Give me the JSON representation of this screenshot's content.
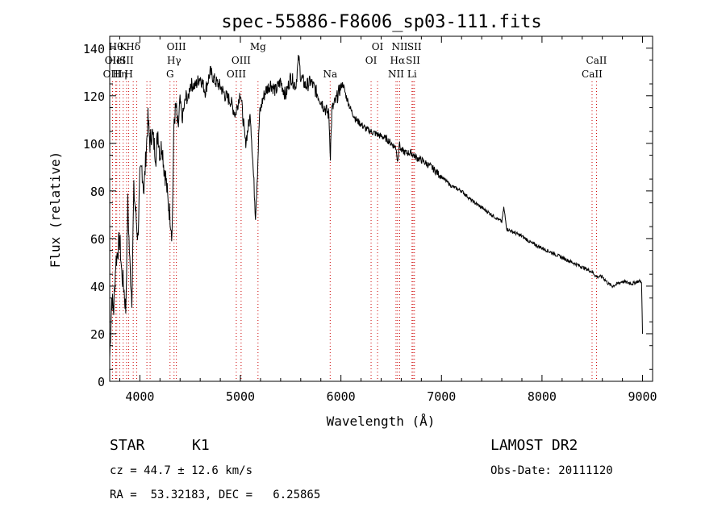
{
  "chart_data": {
    "type": "line",
    "title": "spec-55886-F8606_sp03-111.fits",
    "xlabel": "Wavelength (Å)",
    "ylabel": "Flux (relative)",
    "xlim": [
      3700,
      9100
    ],
    "ylim": [
      0,
      145
    ],
    "xticks": [
      4000,
      5000,
      6000,
      7000,
      8000,
      9000
    ],
    "yticks": [
      0,
      20,
      40,
      60,
      80,
      100,
      120,
      140
    ],
    "grid": false,
    "line_color": "#000000",
    "marker_line_color": "#cc0000",
    "series": [
      {
        "x": [
          3700,
          3720,
          3740,
          3760,
          3780,
          3800,
          3820,
          3840,
          3860,
          3880,
          3900,
          3920,
          3940,
          3960,
          3980,
          4000,
          4020,
          4040,
          4060,
          4080,
          4100,
          4120,
          4140,
          4160,
          4180,
          4200,
          4220,
          4240,
          4260,
          4280,
          4300,
          4320,
          4340,
          4360,
          4380,
          4400,
          4420,
          4440,
          4460,
          4480,
          4500,
          4550,
          4600,
          4650,
          4700,
          4750,
          4800,
          4850,
          4900,
          4950,
          5000,
          5050,
          5100,
          5150,
          5170,
          5190,
          5220,
          5250,
          5300,
          5350,
          5400,
          5450,
          5500,
          5550,
          5580,
          5600,
          5650,
          5700,
          5750,
          5800,
          5850,
          5880,
          5895,
          5910,
          5950,
          6000,
          6020,
          6050,
          6100,
          6150,
          6200,
          6250,
          6300,
          6350,
          6400,
          6450,
          6500,
          6550,
          6563,
          6580,
          6600,
          6650,
          6700,
          6750,
          6800,
          6900,
          7000,
          7100,
          7200,
          7300,
          7400,
          7500,
          7600,
          7620,
          7650,
          7700,
          7800,
          7900,
          8000,
          8100,
          8200,
          8300,
          8400,
          8500,
          8540,
          8600,
          8660,
          8700,
          8800,
          8900,
          8950,
          8990,
          9000
        ],
        "y": [
          10,
          35,
          30,
          50,
          55,
          60,
          45,
          40,
          30,
          75,
          50,
          35,
          80,
          70,
          60,
          85,
          90,
          80,
          95,
          110,
          100,
          105,
          100,
          95,
          105,
          95,
          100,
          90,
          85,
          75,
          70,
          62,
          110,
          115,
          105,
          118,
          110,
          115,
          120,
          118,
          125,
          124,
          128,
          122,
          130,
          126,
          124,
          120,
          118,
          112,
          122,
          100,
          112,
          70,
          88,
          112,
          118,
          122,
          125,
          122,
          126,
          120,
          128,
          124,
          136,
          128,
          124,
          126,
          122,
          118,
          114,
          112,
          95,
          114,
          118,
          124,
          125,
          120,
          114,
          110,
          108,
          106,
          105,
          104,
          103,
          102,
          100,
          98,
          92,
          100,
          97,
          96,
          96,
          94,
          93,
          90,
          86,
          82,
          80,
          76,
          73,
          70,
          67,
          73,
          64,
          63,
          61,
          58,
          56,
          54,
          52,
          50,
          48,
          46,
          44,
          44,
          41,
          40,
          42,
          41,
          42,
          42,
          20
        ]
      }
    ],
    "markers": [
      {
        "x": 3727,
        "label": "OII",
        "row": 1
      },
      {
        "x": 3729,
        "label": "OIII",
        "row": 2
      },
      {
        "x": 3760,
        "label": "Hθ",
        "row": 0
      },
      {
        "x": 3770,
        "label": "HeI",
        "row": 1
      },
      {
        "x": 3800,
        "label": "Hη",
        "row": 2
      },
      {
        "x": 3834,
        "label": "K",
        "row": 0
      },
      {
        "x": 3868,
        "label": "SII",
        "row": 1
      },
      {
        "x": 3889,
        "label": "H",
        "row": 2
      },
      {
        "x": 3934,
        "label": "Hδ",
        "row": 0
      },
      {
        "x": 3969,
        "label": "",
        "row": 0
      },
      {
        "x": 4070,
        "label": "",
        "row": 0
      },
      {
        "x": 4102,
        "label": "",
        "row": 0
      },
      {
        "x": 4300,
        "label": "G",
        "row": 2
      },
      {
        "x": 4340,
        "label": "Hγ",
        "row": 1
      },
      {
        "x": 4363,
        "label": "OIII",
        "row": 0
      },
      {
        "x": 4959,
        "label": "OIII",
        "row": 2
      },
      {
        "x": 5007,
        "label": "OIII",
        "row": 1
      },
      {
        "x": 5175,
        "label": "Mg",
        "row": 0
      },
      {
        "x": 5893,
        "label": "Na",
        "row": 2
      },
      {
        "x": 6300,
        "label": "OI",
        "row": 1
      },
      {
        "x": 6364,
        "label": "OI",
        "row": 0
      },
      {
        "x": 6548,
        "label": "NII",
        "row": 2
      },
      {
        "x": 6563,
        "label": "Hα",
        "row": 1
      },
      {
        "x": 6584,
        "label": "NII",
        "row": 0
      },
      {
        "x": 6707,
        "label": "Li",
        "row": 2
      },
      {
        "x": 6717,
        "label": "SII",
        "row": 1
      },
      {
        "x": 6731,
        "label": "SII",
        "row": 0
      },
      {
        "x": 8498,
        "label": "CaII",
        "row": 2
      },
      {
        "x": 8542,
        "label": "CaII",
        "row": 1
      }
    ]
  },
  "info": {
    "class": "STAR",
    "subclass": "K1",
    "survey": "LAMOST DR2",
    "cz": "cz = 44.7 ± 12.6 km/s",
    "obs_date": "Obs-Date: 20111120",
    "radec": "RA =  53.32183, DEC =   6.25865"
  }
}
